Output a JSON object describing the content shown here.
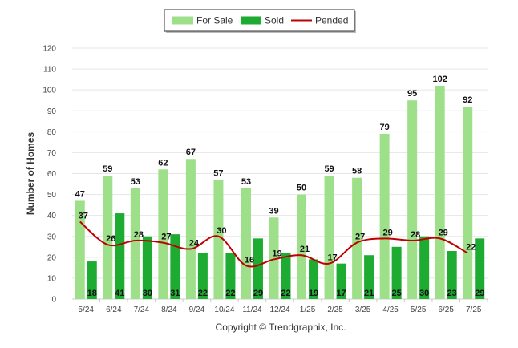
{
  "chart_data": {
    "type": "bar",
    "categories": [
      "5/24",
      "6/24",
      "7/24",
      "8/24",
      "9/24",
      "10/24",
      "11/24",
      "12/24",
      "1/25",
      "2/25",
      "3/25",
      "4/25",
      "5/25",
      "6/25",
      "7/25"
    ],
    "series": [
      {
        "name": "For Sale",
        "kind": "bar",
        "color": "#9EE08A",
        "values": [
          47,
          59,
          53,
          62,
          67,
          57,
          53,
          39,
          50,
          59,
          58,
          79,
          95,
          102,
          92
        ]
      },
      {
        "name": "Sold",
        "kind": "bar",
        "color": "#1EAB32",
        "values": [
          18,
          41,
          30,
          31,
          22,
          22,
          29,
          22,
          19,
          17,
          21,
          25,
          30,
          23,
          29
        ]
      },
      {
        "name": "Pended",
        "kind": "line",
        "color": "#C00000",
        "values": [
          37,
          26,
          28,
          27,
          24,
          30,
          16,
          19,
          21,
          17,
          27,
          29,
          28,
          29,
          22
        ]
      }
    ],
    "ylabel": "Number of Homes",
    "ylim": [
      0,
      120
    ],
    "yticks": [
      0,
      10,
      20,
      30,
      40,
      50,
      60,
      70,
      80,
      90,
      100,
      110,
      120
    ],
    "legend_position": "top-center",
    "grid": true
  },
  "footer": {
    "copyright": "Copyright © Trendgraphix, Inc."
  }
}
